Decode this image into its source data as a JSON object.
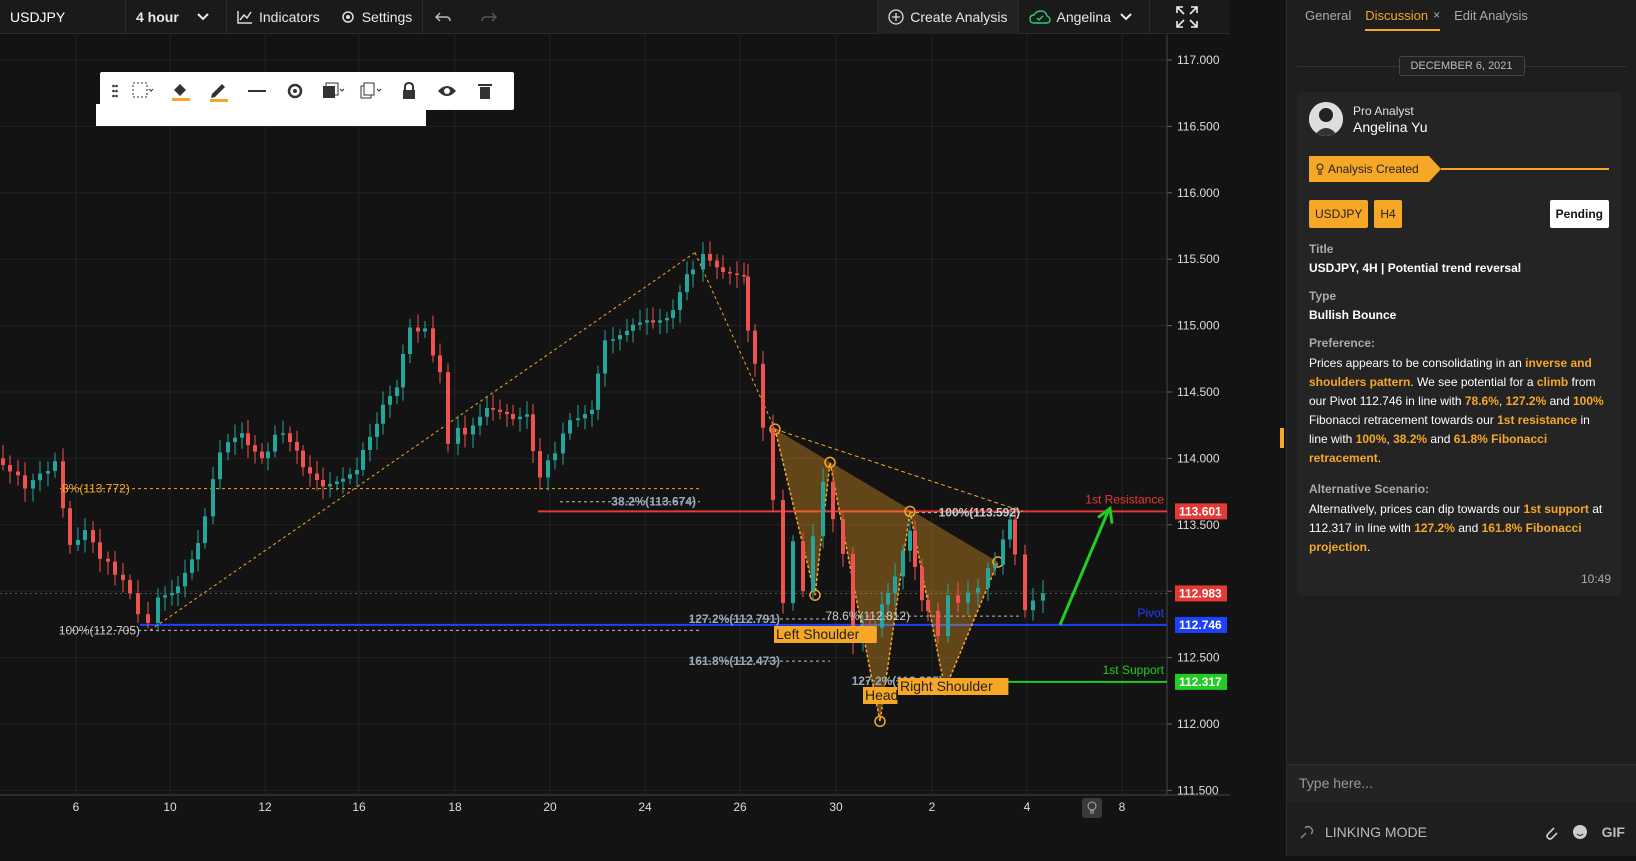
{
  "topbar": {
    "symbol": "USDJPY",
    "timeframe": "4 hour",
    "indicators": "Indicators",
    "settings": "Settings",
    "create_analysis": "Create Analysis",
    "user": "Angelina"
  },
  "chart": {
    "y_ticks": [
      "117.000",
      "116.500",
      "116.000",
      "115.500",
      "115.000",
      "114.500",
      "114.000",
      "113.500",
      "113.000",
      "112.500",
      "112.000",
      "111.500"
    ],
    "x_ticks": [
      "6",
      "10",
      "12",
      "16",
      "18",
      "20",
      "24",
      "26",
      "30",
      "2",
      "4",
      "8"
    ],
    "price_labels": {
      "resistance": "113.601",
      "current": "112.983",
      "pivot": "112.746",
      "support": "112.317"
    },
    "line_labels": {
      "resistance": "1st Resistance",
      "pivot": "Pivot",
      "support": "1st Support"
    },
    "fib_labels": {
      "f1": "8%(113.772)",
      "f2": "100%(112.705)",
      "f3": "38.2%(113.674)",
      "f4": "127.2%(112.791)",
      "f5": "161.8%(112.473)",
      "f6": "100%(113.592)",
      "f7": "78.6%(112.812)",
      "f8": "127.2%(112.325)"
    },
    "pattern_labels": {
      "left": "Left Shoulder",
      "head": "Head",
      "right": "Right Shoulder"
    },
    "colors": {
      "up": "#26a69a",
      "down": "#ef5350",
      "resistance": "#e53935",
      "pivot": "#1e40ff",
      "support": "#22cc22",
      "fib": "#f7a726"
    }
  },
  "panel": {
    "tabs": [
      "General",
      "Discussion",
      "Edit Analysis"
    ],
    "date": "DECEMBER 6, 2021",
    "role": "Pro Analyst",
    "name": "Angelina Yu",
    "created": "Analysis Created",
    "tag1": "USDJPY",
    "tag2": "H4",
    "status": "Pending",
    "title_label": "Title",
    "title": "USDJPY, 4H | Potential trend reversal",
    "type_label": "Type",
    "type": "Bullish Bounce",
    "pref_label": "Preference:",
    "p1": "Prices appears to be consolidating in an ",
    "p1h": "inverse and shoulders pattern",
    "p2": ". We see potential for a ",
    "p2h": "climb",
    "p3": " from our Pivot 112.746 in line with ",
    "p3a": "78.6%",
    "p3b": ", ",
    "p3c": "127.2%",
    "p3d": " and ",
    "p3e": "100%",
    "p3f": " Fibonacci retracement towards our ",
    "p3g": "1st resistance",
    "p3h": " in line with ",
    "p3i": "100%",
    "p3j": ", ",
    "p3k": "38.2%",
    "p3l": " and ",
    "p3m": "61.8% Fibonacci retracement",
    "p3n": ".",
    "alt_label": "Alternative Scenario:",
    "a1": "Alternatively, prices can dip towards our ",
    "a1h": "1st support",
    "a2": " at 112.317 in line with ",
    "a2h": "127.2%",
    "a3": " and ",
    "a3h": "161.8% Fibonacci projection",
    "a4": ".",
    "time": "10:49",
    "input_placeholder": "Type here...",
    "linking": "LINKING MODE",
    "gif": "GIF"
  }
}
